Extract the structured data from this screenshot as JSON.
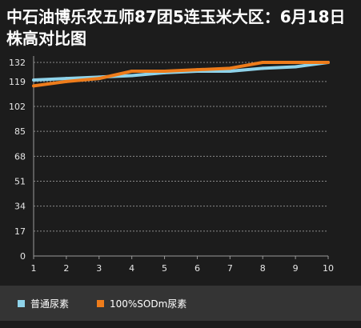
{
  "chart_data": {
    "type": "line",
    "title": "中石油博乐农五师87团5连玉米大区：6月18日株高对比图",
    "xlabel": "",
    "ylabel": "",
    "x": [
      1,
      2,
      3,
      4,
      5,
      6,
      7,
      8,
      9,
      10
    ],
    "ylim": [
      0,
      132
    ],
    "yticks": [
      0,
      17,
      34,
      51,
      68,
      85,
      102,
      119,
      132
    ],
    "grid": true,
    "legend_position": "bottom",
    "series": [
      {
        "name": "普通尿素",
        "color": "#8fd3ea",
        "values": [
          120,
          121,
          122,
          123,
          125,
          126,
          126,
          128,
          129,
          133
        ]
      },
      {
        "name": "100%SODm尿素",
        "color": "#ee7c1b",
        "values": [
          116,
          119,
          121,
          126,
          126,
          127,
          128,
          134,
          134,
          136
        ]
      }
    ]
  }
}
